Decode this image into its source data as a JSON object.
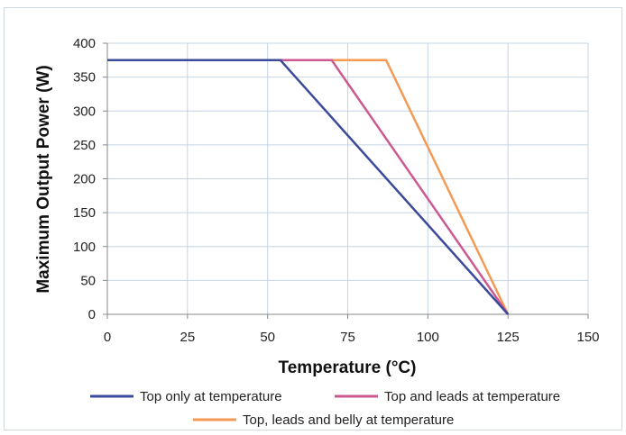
{
  "chart_data": {
    "type": "line",
    "title": "",
    "xlabel": "Temperature (°C)",
    "ylabel": "Maximum Output Power (W)",
    "xlim": [
      0,
      150
    ],
    "ylim": [
      0,
      400
    ],
    "xticks": [
      0,
      25,
      50,
      75,
      100,
      125,
      150
    ],
    "yticks": [
      0,
      50,
      100,
      150,
      200,
      250,
      300,
      350,
      400
    ],
    "grid": true,
    "legend_position": "bottom",
    "series": [
      {
        "name": "Top only at temperature",
        "color": "#3b4a9a",
        "points": [
          [
            0,
            375
          ],
          [
            54,
            375
          ],
          [
            125,
            0
          ]
        ]
      },
      {
        "name": "Top and leads at temperature",
        "color": "#cc5a92",
        "points": [
          [
            0,
            375
          ],
          [
            70,
            375
          ],
          [
            125,
            0
          ]
        ]
      },
      {
        "name": "Top, leads and belly at temperature",
        "color": "#f49a55",
        "points": [
          [
            0,
            375
          ],
          [
            87,
            375
          ],
          [
            125,
            0
          ]
        ]
      }
    ]
  }
}
